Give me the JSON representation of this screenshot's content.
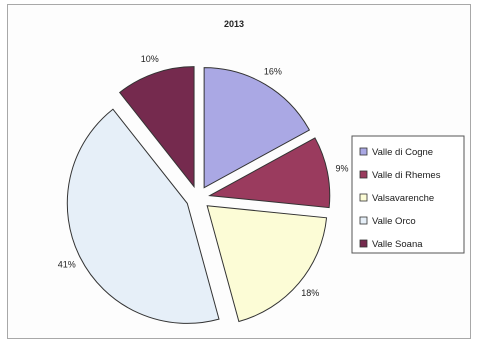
{
  "chart_data": {
    "type": "pie",
    "title": "2013",
    "categories": [
      "Valle di Cogne",
      "Valle di Rhemes",
      "Valsavarenche",
      "Valle Orco",
      "Valle Soana"
    ],
    "values": [
      16,
      9,
      18,
      41,
      10
    ],
    "labels": [
      "16%",
      "9%",
      "18%",
      "41%",
      "10%"
    ],
    "exploded": true,
    "legend_position": "right",
    "colors": [
      "#aaa8e4",
      "#9a3b5e",
      "#fcfcd6",
      "#e6eff8",
      "#752a4e"
    ]
  }
}
